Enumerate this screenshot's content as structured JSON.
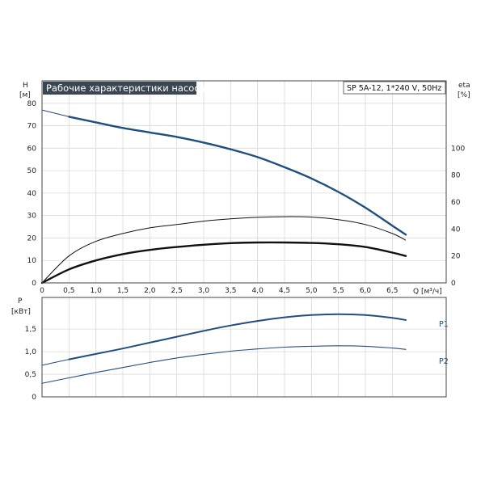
{
  "header": {
    "title": "Рабочие характеристики насоса",
    "model": "SP 5A-12, 1*240 V, 50Hz"
  },
  "colors": {
    "title_bg": "#3a4652",
    "curve_blue": "#1f4e80",
    "grid": "#d9d9d9",
    "frame": "#444444"
  },
  "chart_data": [
    {
      "type": "line",
      "title": "Рабочие характеристики насоса",
      "x_unit": "Q [м³/ч]",
      "xlim": [
        0,
        7.5
      ],
      "x_ticks": [
        0,
        0.5,
        1.0,
        1.5,
        2.0,
        2.5,
        3.0,
        3.5,
        4.0,
        4.5,
        5.0,
        5.5,
        6.0,
        6.5
      ],
      "x_tick_labels": [
        "0",
        "0,5",
        "1,0",
        "1,5",
        "2,0",
        "2,5",
        "3,0",
        "3,5",
        "4,0",
        "4,5",
        "5,0",
        "5,5",
        "6,0",
        "6,5"
      ],
      "left_axis": {
        "label": "H",
        "unit": "[м]",
        "ylim": [
          0,
          90
        ],
        "ticks": [
          0,
          10,
          20,
          30,
          40,
          50,
          60,
          70,
          80
        ]
      },
      "right_axis": {
        "label": "eta",
        "unit": "[%]",
        "ylim": [
          0,
          150
        ],
        "ticks": [
          0,
          20,
          40,
          60,
          80,
          100
        ]
      },
      "grid": true,
      "series": [
        {
          "axis": "left",
          "style": "head",
          "x": [
            0,
            0.5,
            1.0,
            1.5,
            2.0,
            2.5,
            3.0,
            3.5,
            4.0,
            4.5,
            5.0,
            5.5,
            6.0,
            6.5,
            6.75
          ],
          "y": [
            77,
            74,
            71.5,
            69,
            67,
            65,
            62.5,
            59.5,
            56,
            51.5,
            46.5,
            40.5,
            33.5,
            25.5,
            21.5
          ],
          "dashed_x_max": 0.5
        },
        {
          "axis": "left",
          "style": "thin",
          "x": [
            0,
            0.5,
            1.0,
            1.5,
            2.0,
            2.5,
            3.0,
            3.5,
            4.0,
            4.5,
            5.0,
            5.5,
            6.0,
            6.5,
            6.75
          ],
          "y": [
            0,
            12,
            18.5,
            22,
            24.5,
            26,
            27.5,
            28.5,
            29.2,
            29.5,
            29.3,
            28.2,
            26,
            22,
            19
          ]
        },
        {
          "axis": "left",
          "style": "thick",
          "x": [
            0,
            0.5,
            1.0,
            1.5,
            2.0,
            2.5,
            3.0,
            3.5,
            4.0,
            4.5,
            5.0,
            5.5,
            6.0,
            6.5,
            6.75
          ],
          "y": [
            0,
            6,
            10,
            12.8,
            14.7,
            16,
            17,
            17.7,
            18,
            18,
            17.8,
            17.2,
            16,
            13.5,
            12
          ]
        }
      ]
    },
    {
      "type": "line",
      "y_axis": {
        "label": "P",
        "unit": "[кВт]",
        "ylim": [
          0,
          2.2
        ],
        "ticks": [
          0,
          0.5,
          1.0,
          1.5
        ],
        "tick_labels": [
          "0",
          "0,5",
          "1,0",
          "1,5"
        ]
      },
      "xlim": [
        0,
        7.5
      ],
      "grid": true,
      "series": [
        {
          "name": "P1",
          "x": [
            0,
            0.5,
            1.0,
            1.5,
            2.0,
            2.5,
            3.0,
            3.5,
            4.0,
            4.5,
            5.0,
            5.5,
            6.0,
            6.5,
            6.75
          ],
          "y": [
            0.7,
            0.83,
            0.95,
            1.07,
            1.2,
            1.33,
            1.46,
            1.58,
            1.68,
            1.76,
            1.81,
            1.83,
            1.81,
            1.75,
            1.7
          ],
          "dashed_x_max": 0.5
        },
        {
          "name": "P2",
          "x": [
            0,
            0.5,
            1.0,
            1.5,
            2.0,
            2.5,
            3.0,
            3.5,
            4.0,
            4.5,
            5.0,
            5.5,
            6.0,
            6.5,
            6.75
          ],
          "y": [
            0.3,
            0.42,
            0.54,
            0.65,
            0.76,
            0.86,
            0.94,
            1.01,
            1.06,
            1.1,
            1.12,
            1.13,
            1.12,
            1.08,
            1.05
          ],
          "dashed_x_max": 0.5
        }
      ]
    }
  ]
}
